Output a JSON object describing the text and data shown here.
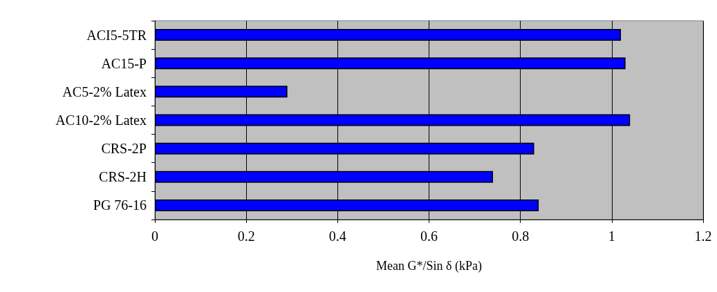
{
  "chart_data": {
    "type": "bar",
    "orientation": "horizontal",
    "xlabel": "Mean G*/Sin δ (kPa)",
    "categories": [
      "ACI5-5TR",
      "AC15-P",
      "AC5-2% Latex",
      "AC10-2% Latex",
      "CRS-2P",
      "CRS-2H",
      "PG 76-16"
    ],
    "values": [
      1.02,
      1.03,
      0.29,
      1.04,
      0.83,
      0.74,
      0.84
    ],
    "color": "#0000ff",
    "xlim": [
      0,
      1.2
    ],
    "xticks": [
      0,
      0.2,
      0.4,
      0.6,
      0.8,
      1,
      1.2
    ],
    "grid": "x"
  }
}
